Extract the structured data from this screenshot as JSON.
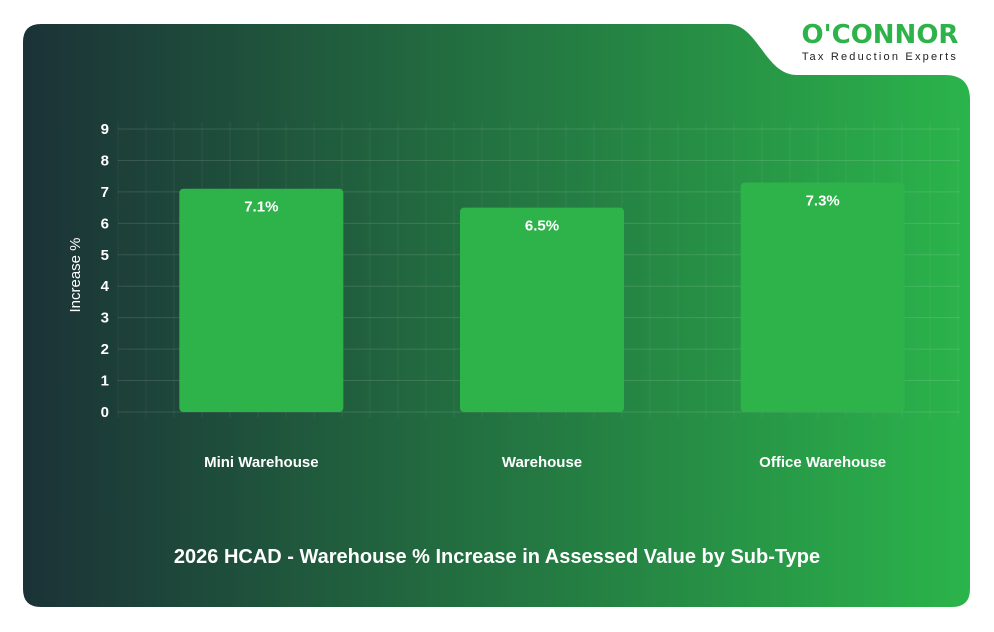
{
  "logo": {
    "brand": "O'CONNOR",
    "tagline": "Tax Reduction Experts"
  },
  "colors": {
    "background_left": "#1b3237",
    "background_right": "#2bb44b",
    "bar": "#2db34a",
    "text": "#ffffff"
  },
  "chart_data": {
    "type": "bar",
    "title": "2026 HCAD - Warehouse % Increase in Assessed Value by Sub-Type",
    "xlabel": "",
    "ylabel": "Increase %",
    "categories": [
      "Mini Warehouse",
      "Warehouse",
      "Office Warehouse"
    ],
    "values": [
      7.1,
      6.5,
      7.3
    ],
    "data_labels": [
      "7.1%",
      "6.5%",
      "7.3%"
    ],
    "ylim": [
      0,
      9
    ],
    "yticks": [
      "0",
      "1",
      "2",
      "3",
      "4",
      "5",
      "6",
      "7",
      "8",
      "9"
    ],
    "grid": true,
    "legend": "none"
  }
}
